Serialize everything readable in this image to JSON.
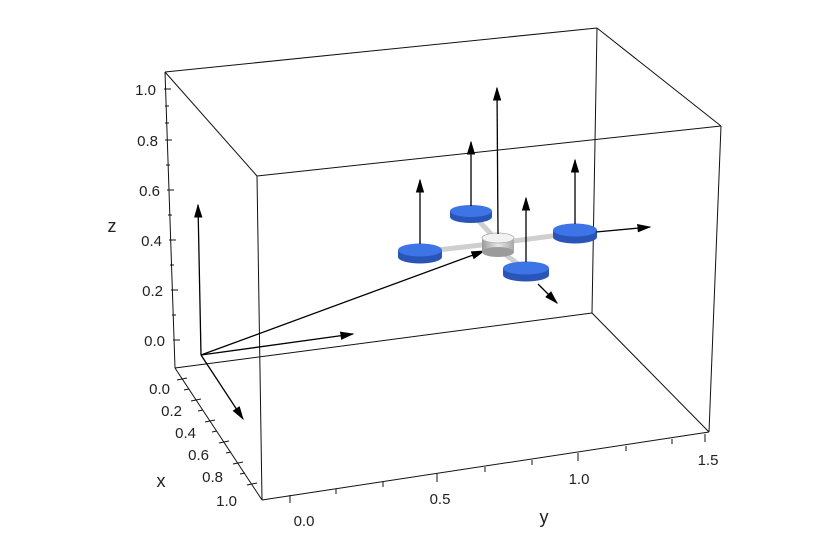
{
  "axes": {
    "z": {
      "label": "z",
      "ticks": [
        "1.0",
        "0.8",
        "0.6",
        "0.4",
        "0.2",
        "0.0"
      ]
    },
    "x": {
      "label": "x",
      "ticks": [
        "0.0",
        "0.2",
        "0.4",
        "0.6",
        "0.8",
        "1.0"
      ]
    },
    "y": {
      "label": "y",
      "ticks": [
        "0.0",
        "0.5",
        "1.0",
        "1.5"
      ]
    }
  },
  "colors": {
    "rotor": "#3d74e6",
    "rotor_dark": "#2a55b8",
    "body": "#e6e6e6",
    "arm": "#cfcfcf",
    "vector": "#000000"
  },
  "scene": {
    "type": "3d-quadrotor-diagram",
    "rotor_count": 4,
    "has_world_frame_axes": true,
    "has_body_frame_axes": true,
    "has_position_vector": true,
    "has_thrust_vectors": true
  }
}
